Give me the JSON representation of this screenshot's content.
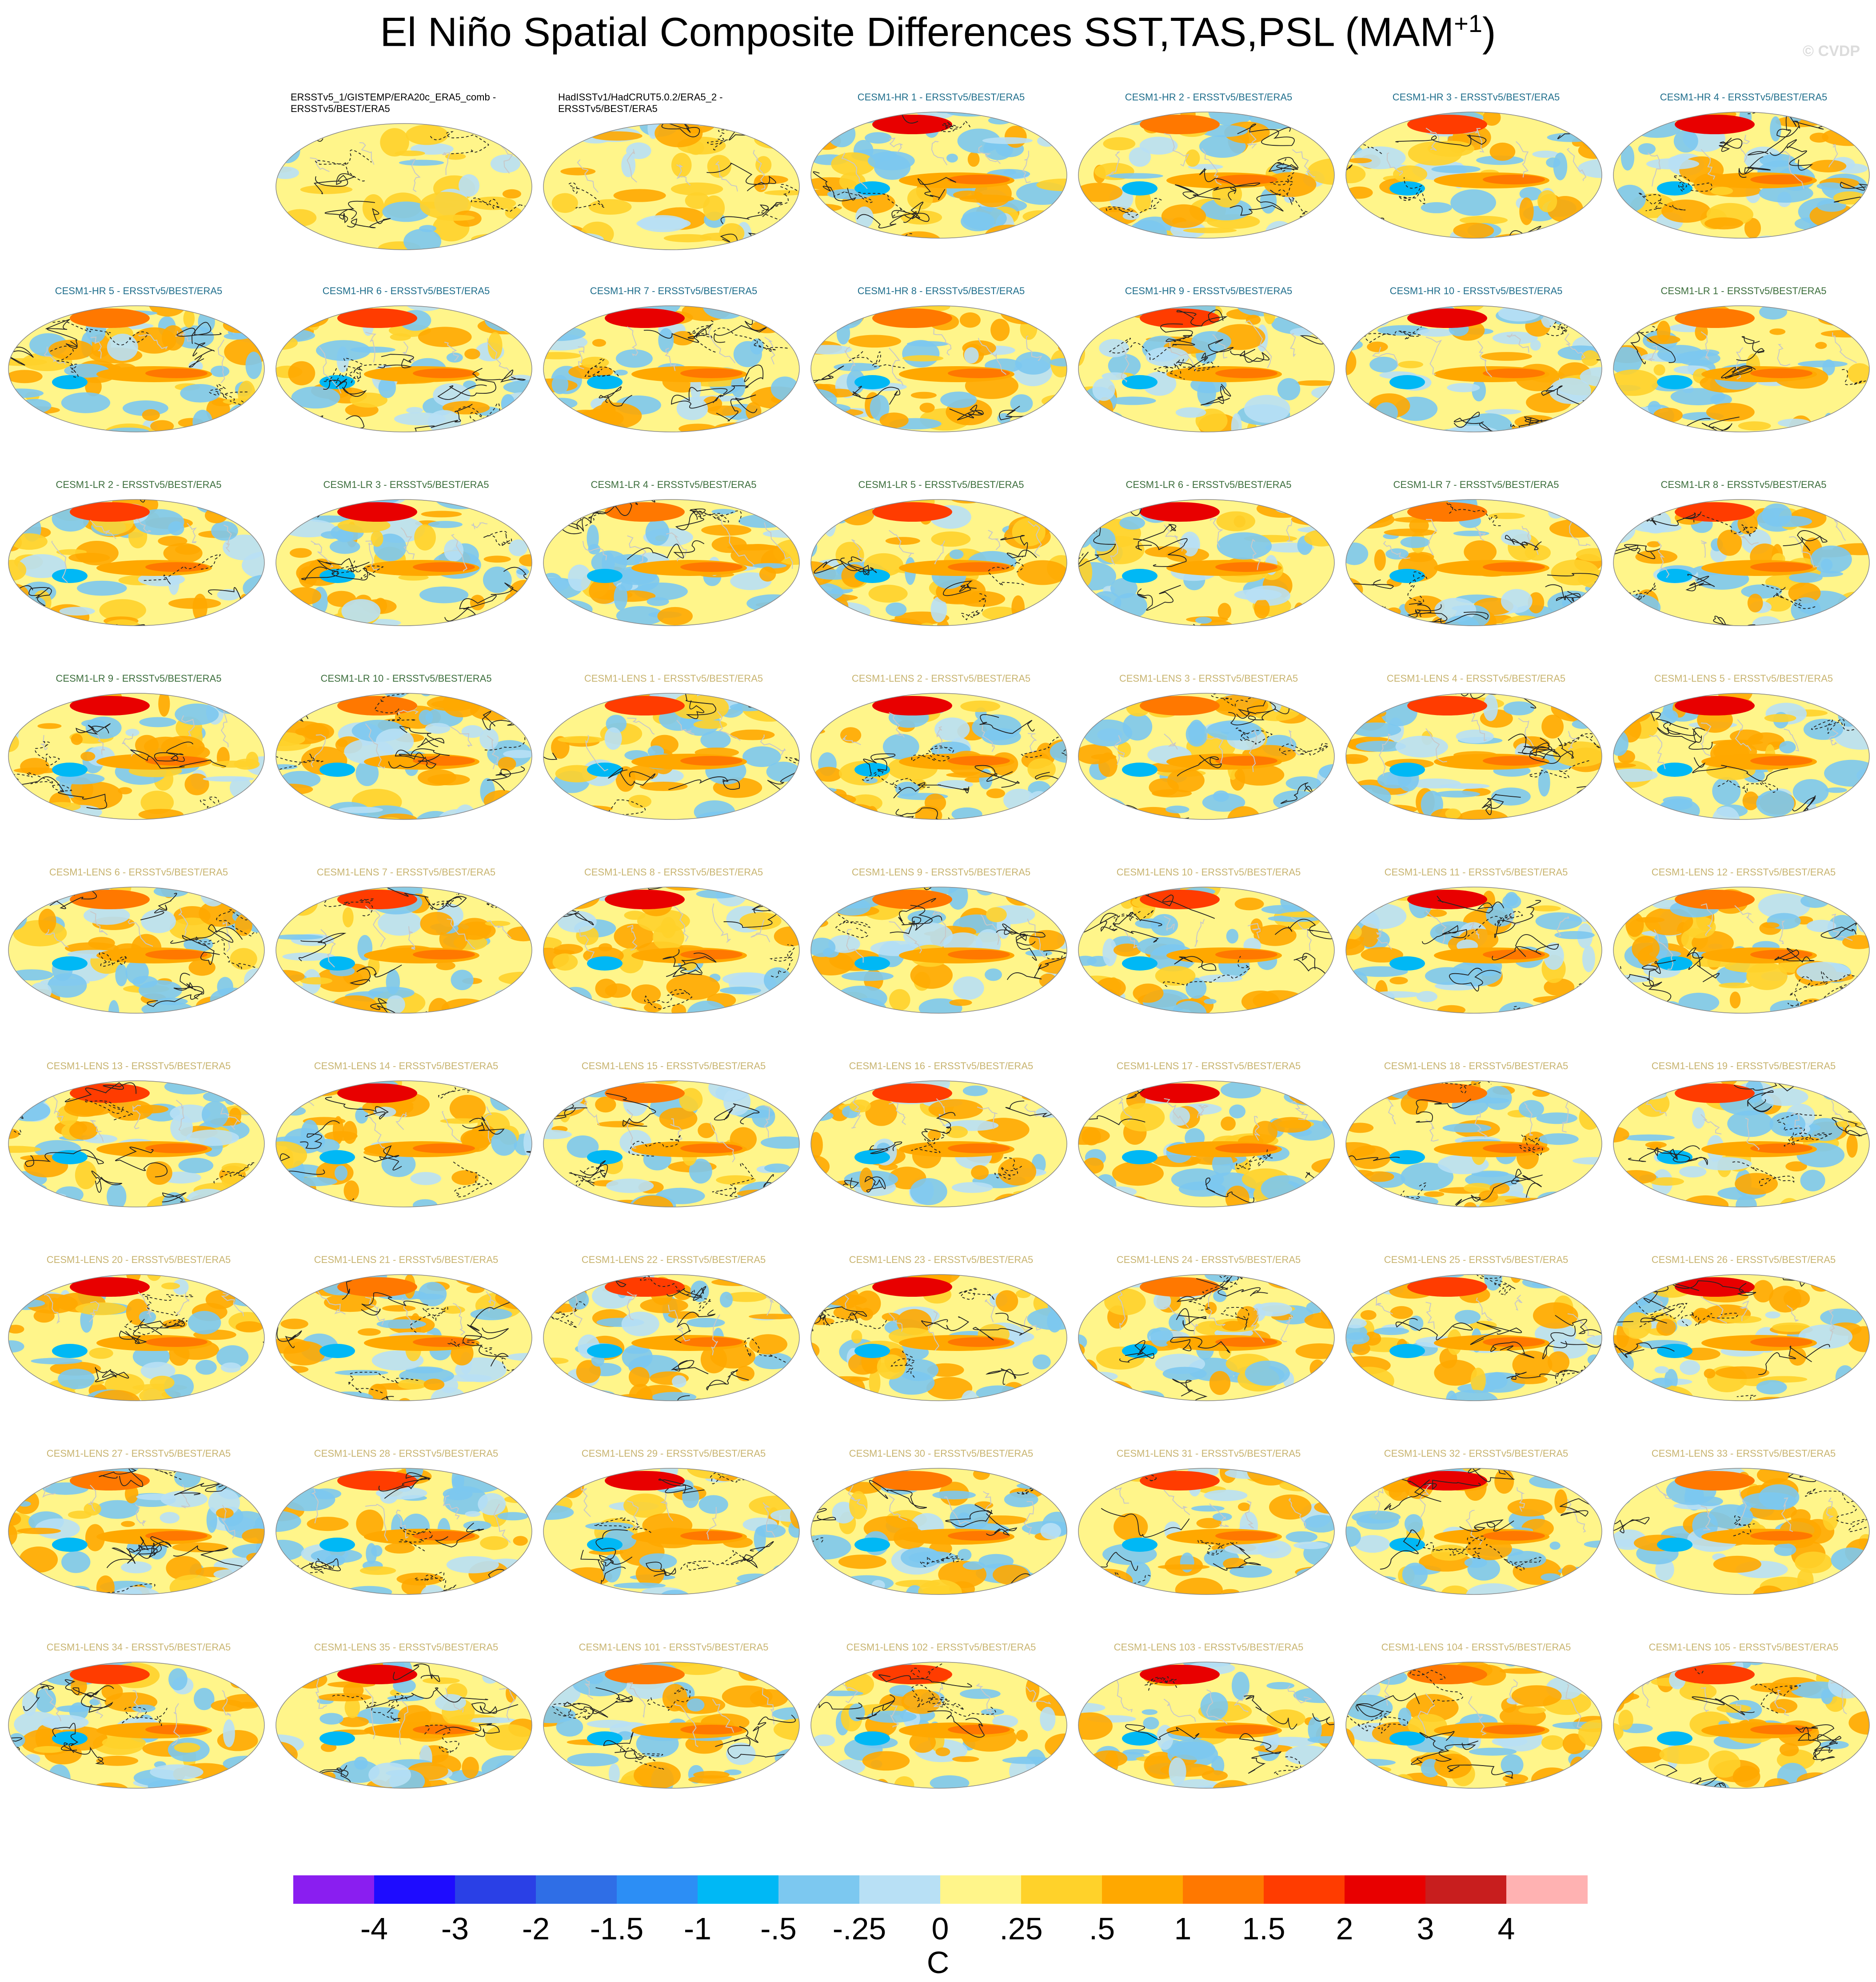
{
  "title": "El Niño Spatial Composite Differences SST,TAS,PSL (MAM",
  "title_sup": "+1",
  "title_close": ")",
  "watermark": "© CVDP",
  "colorbar": {
    "units": "C",
    "tick_labels": [
      "-4",
      "-3",
      "-2",
      "-1.5",
      "-1",
      "-.5",
      "-.25",
      "0",
      ".25",
      ".5",
      "1",
      "1.5",
      "2",
      "3",
      "4"
    ],
    "colors": [
      "#8a1ef0",
      "#1e0cff",
      "#2a40e6",
      "#2f6ee6",
      "#2c8ef5",
      "#00b8f5",
      "#7cc8f0",
      "#b8e0f5",
      "#fff58a",
      "#ffd22a",
      "#ffa800",
      "#ff7800",
      "#ff3c00",
      "#e80000",
      "#c81e1e",
      "#ffb2b2"
    ]
  },
  "label_colors": {
    "obs": "#000000",
    "hr": "#1f6e8c",
    "lr": "#3c6e3c",
    "lens": "#c8b470"
  },
  "panels": [
    {
      "label": "ERSSTv5_1/GISTEMP/ERA20c_ERA5_comb - ERSSTv5/BEST/ERA5",
      "group": "obs"
    },
    {
      "label": "HadISSTv1/HadCRUT5.0.2/ERA5_2 - ERSSTv5/BEST/ERA5",
      "group": "obs"
    },
    {
      "label": "CESM1-HR 1 - ERSSTv5/BEST/ERA5",
      "group": "hr"
    },
    {
      "label": "CESM1-HR 2 - ERSSTv5/BEST/ERA5",
      "group": "hr"
    },
    {
      "label": "CESM1-HR 3 - ERSSTv5/BEST/ERA5",
      "group": "hr"
    },
    {
      "label": "CESM1-HR 4 - ERSSTv5/BEST/ERA5",
      "group": "hr"
    },
    {
      "label": "CESM1-HR 5 - ERSSTv5/BEST/ERA5",
      "group": "hr"
    },
    {
      "label": "CESM1-HR 6 - ERSSTv5/BEST/ERA5",
      "group": "hr"
    },
    {
      "label": "CESM1-HR 7 - ERSSTv5/BEST/ERA5",
      "group": "hr"
    },
    {
      "label": "CESM1-HR 8 - ERSSTv5/BEST/ERA5",
      "group": "hr"
    },
    {
      "label": "CESM1-HR 9 - ERSSTv5/BEST/ERA5",
      "group": "hr"
    },
    {
      "label": "CESM1-HR 10 - ERSSTv5/BEST/ERA5",
      "group": "hr"
    },
    {
      "label": "CESM1-LR 1 - ERSSTv5/BEST/ERA5",
      "group": "lr"
    },
    {
      "label": "CESM1-LR 2 - ERSSTv5/BEST/ERA5",
      "group": "lr"
    },
    {
      "label": "CESM1-LR 3 - ERSSTv5/BEST/ERA5",
      "group": "lr"
    },
    {
      "label": "CESM1-LR 4 - ERSSTv5/BEST/ERA5",
      "group": "lr"
    },
    {
      "label": "CESM1-LR 5 - ERSSTv5/BEST/ERA5",
      "group": "lr"
    },
    {
      "label": "CESM1-LR 6 - ERSSTv5/BEST/ERA5",
      "group": "lr"
    },
    {
      "label": "CESM1-LR 7 - ERSSTv5/BEST/ERA5",
      "group": "lr"
    },
    {
      "label": "CESM1-LR 8 - ERSSTv5/BEST/ERA5",
      "group": "lr"
    },
    {
      "label": "CESM1-LR 9 - ERSSTv5/BEST/ERA5",
      "group": "lr"
    },
    {
      "label": "CESM1-LR 10 - ERSSTv5/BEST/ERA5",
      "group": "lr"
    },
    {
      "label": "CESM1-LENS 1 - ERSSTv5/BEST/ERA5",
      "group": "lens"
    },
    {
      "label": "CESM1-LENS 2 - ERSSTv5/BEST/ERA5",
      "group": "lens"
    },
    {
      "label": "CESM1-LENS 3 - ERSSTv5/BEST/ERA5",
      "group": "lens"
    },
    {
      "label": "CESM1-LENS 4 - ERSSTv5/BEST/ERA5",
      "group": "lens"
    },
    {
      "label": "CESM1-LENS 5 - ERSSTv5/BEST/ERA5",
      "group": "lens"
    },
    {
      "label": "CESM1-LENS 6 - ERSSTv5/BEST/ERA5",
      "group": "lens"
    },
    {
      "label": "CESM1-LENS 7 - ERSSTv5/BEST/ERA5",
      "group": "lens"
    },
    {
      "label": "CESM1-LENS 8 - ERSSTv5/BEST/ERA5",
      "group": "lens"
    },
    {
      "label": "CESM1-LENS 9 - ERSSTv5/BEST/ERA5",
      "group": "lens"
    },
    {
      "label": "CESM1-LENS 10 - ERSSTv5/BEST/ERA5",
      "group": "lens"
    },
    {
      "label": "CESM1-LENS 11 - ERSSTv5/BEST/ERA5",
      "group": "lens"
    },
    {
      "label": "CESM1-LENS 12 - ERSSTv5/BEST/ERA5",
      "group": "lens"
    },
    {
      "label": "CESM1-LENS 13 - ERSSTv5/BEST/ERA5",
      "group": "lens"
    },
    {
      "label": "CESM1-LENS 14 - ERSSTv5/BEST/ERA5",
      "group": "lens"
    },
    {
      "label": "CESM1-LENS 15 - ERSSTv5/BEST/ERA5",
      "group": "lens"
    },
    {
      "label": "CESM1-LENS 16 - ERSSTv5/BEST/ERA5",
      "group": "lens"
    },
    {
      "label": "CESM1-LENS 17 - ERSSTv5/BEST/ERA5",
      "group": "lens"
    },
    {
      "label": "CESM1-LENS 18 - ERSSTv5/BEST/ERA5",
      "group": "lens"
    },
    {
      "label": "CESM1-LENS 19 - ERSSTv5/BEST/ERA5",
      "group": "lens"
    },
    {
      "label": "CESM1-LENS 20 - ERSSTv5/BEST/ERA5",
      "group": "lens"
    },
    {
      "label": "CESM1-LENS 21 - ERSSTv5/BEST/ERA5",
      "group": "lens"
    },
    {
      "label": "CESM1-LENS 22 - ERSSTv5/BEST/ERA5",
      "group": "lens"
    },
    {
      "label": "CESM1-LENS 23 - ERSSTv5/BEST/ERA5",
      "group": "lens"
    },
    {
      "label": "CESM1-LENS 24 - ERSSTv5/BEST/ERA5",
      "group": "lens"
    },
    {
      "label": "CESM1-LENS 25 - ERSSTv5/BEST/ERA5",
      "group": "lens"
    },
    {
      "label": "CESM1-LENS 26 - ERSSTv5/BEST/ERA5",
      "group": "lens"
    },
    {
      "label": "CESM1-LENS 27 - ERSSTv5/BEST/ERA5",
      "group": "lens"
    },
    {
      "label": "CESM1-LENS 28 - ERSSTv5/BEST/ERA5",
      "group": "lens"
    },
    {
      "label": "CESM1-LENS 29 - ERSSTv5/BEST/ERA5",
      "group": "lens"
    },
    {
      "label": "CESM1-LENS 30 - ERSSTv5/BEST/ERA5",
      "group": "lens"
    },
    {
      "label": "CESM1-LENS 31 - ERSSTv5/BEST/ERA5",
      "group": "lens"
    },
    {
      "label": "CESM1-LENS 32 - ERSSTv5/BEST/ERA5",
      "group": "lens"
    },
    {
      "label": "CESM1-LENS 33 - ERSSTv5/BEST/ERA5",
      "group": "lens"
    },
    {
      "label": "CESM1-LENS 34 - ERSSTv5/BEST/ERA5",
      "group": "lens"
    },
    {
      "label": "CESM1-LENS 35 - ERSSTv5/BEST/ERA5",
      "group": "lens"
    },
    {
      "label": "CESM1-LENS 101 - ERSSTv5/BEST/ERA5",
      "group": "lens"
    },
    {
      "label": "CESM1-LENS 102 - ERSSTv5/BEST/ERA5",
      "group": "lens"
    },
    {
      "label": "CESM1-LENS 103 - ERSSTv5/BEST/ERA5",
      "group": "lens"
    },
    {
      "label": "CESM1-LENS 104 - ERSSTv5/BEST/ERA5",
      "group": "lens"
    },
    {
      "label": "CESM1-LENS 105 - ERSSTv5/BEST/ERA5",
      "group": "lens"
    }
  ],
  "chart_data": {
    "type": "heatmap",
    "title": "El Niño Spatial Composite Differences SST,TAS,PSL (MAM+1)",
    "fields": [
      "SST",
      "TAS",
      "PSL"
    ],
    "season": "MAM+1",
    "projection": "global ellipse (Robinson-like)",
    "panel_count": 62,
    "grid_columns": 7,
    "grid_rows": 9,
    "first_row_empty_slots": 1,
    "colorbar_levels": [
      -4,
      -3,
      -2,
      -1.5,
      -1,
      -0.5,
      -0.25,
      0,
      0.25,
      0.5,
      1,
      1.5,
      2,
      3,
      4
    ],
    "colorbar_units": "C",
    "contours": "PSL differences, solid positive / dashed negative",
    "legend_position": "bottom"
  }
}
